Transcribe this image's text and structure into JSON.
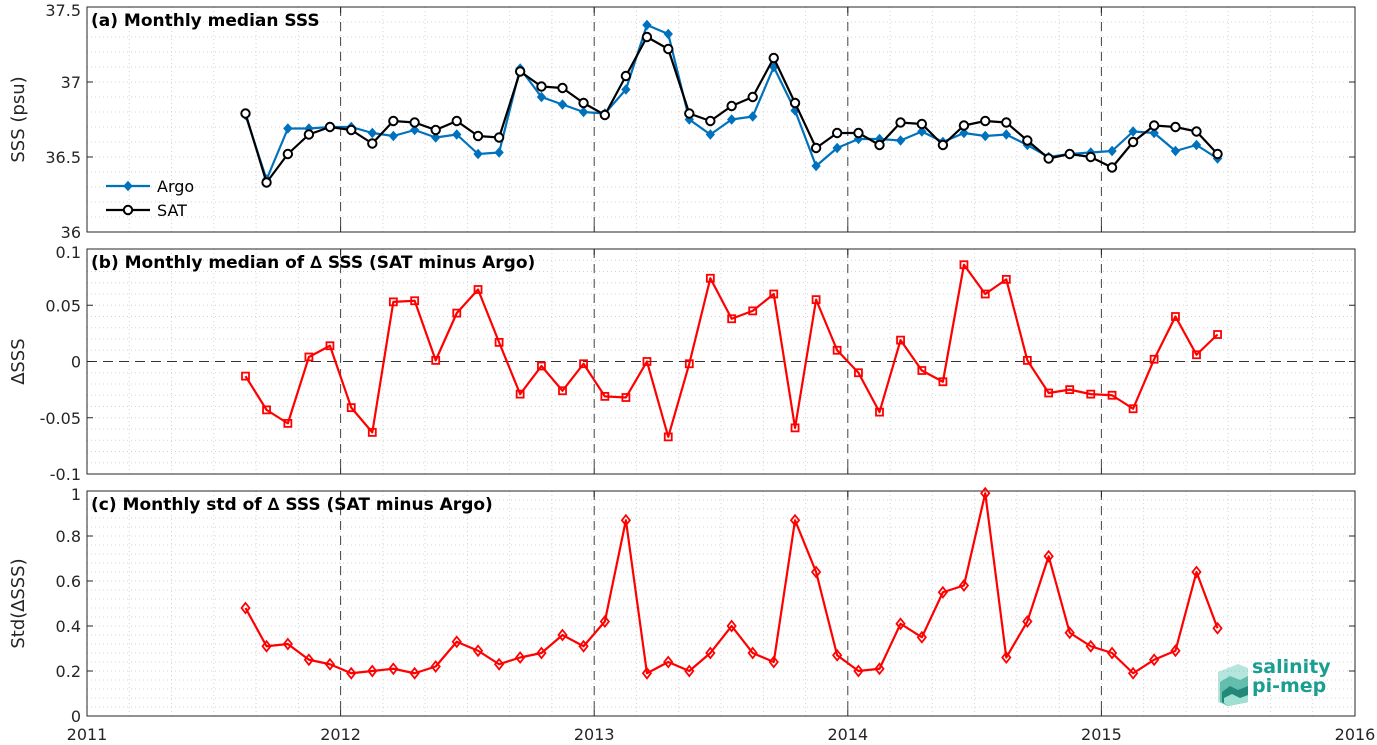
{
  "chart_data": [
    {
      "type": "line",
      "title": "(a) Monthly median SSS",
      "ylabel": "SSS (psu)",
      "xlim": [
        2011,
        2016
      ],
      "ylim": [
        36,
        37.5
      ],
      "xticks": [
        "2011",
        "2012",
        "2013",
        "2014",
        "2015",
        "2016"
      ],
      "yticks": [
        "36",
        "36.5",
        "37",
        "37.5"
      ],
      "legend_position": "lower-left",
      "series": [
        {
          "name": "Argo",
          "color": "#0072BD",
          "marker": "diamond",
          "x": [
            2011.625,
            2011.708,
            2011.792,
            2011.875,
            2011.958,
            2012.042,
            2012.125,
            2012.208,
            2012.292,
            2012.375,
            2012.458,
            2012.542,
            2012.625,
            2012.708,
            2012.792,
            2012.875,
            2012.958,
            2013.042,
            2013.125,
            2013.208,
            2013.292,
            2013.375,
            2013.458,
            2013.542,
            2013.625,
            2013.708,
            2013.792,
            2013.875,
            2013.958,
            2014.042,
            2014.125,
            2014.208,
            2014.292,
            2014.375,
            2014.458,
            2014.542,
            2014.625,
            2014.708,
            2014.792,
            2014.875,
            2014.958,
            2015.042,
            2015.125,
            2015.208,
            2015.292,
            2015.375,
            2015.458
          ],
          "y": [
            36.78,
            36.35,
            36.69,
            36.69,
            36.7,
            36.7,
            36.66,
            36.64,
            36.68,
            36.63,
            36.65,
            36.52,
            36.53,
            37.09,
            36.9,
            36.85,
            36.8,
            36.79,
            36.95,
            37.38,
            37.32,
            36.75,
            36.65,
            36.75,
            36.77,
            37.1,
            36.81,
            36.44,
            36.56,
            36.62,
            36.62,
            36.61,
            36.67,
            36.6,
            36.66,
            36.64,
            36.65,
            36.58,
            36.5,
            36.52,
            36.53,
            36.54,
            36.67,
            36.66,
            36.54,
            36.58,
            36.49
          ]
        },
        {
          "name": "SAT",
          "color": "#000000",
          "marker": "circle",
          "x": [
            2011.625,
            2011.708,
            2011.792,
            2011.875,
            2011.958,
            2012.042,
            2012.125,
            2012.208,
            2012.292,
            2012.375,
            2012.458,
            2012.542,
            2012.625,
            2012.708,
            2012.792,
            2012.875,
            2012.958,
            2013.042,
            2013.125,
            2013.208,
            2013.292,
            2013.375,
            2013.458,
            2013.542,
            2013.625,
            2013.708,
            2013.792,
            2013.875,
            2013.958,
            2014.042,
            2014.125,
            2014.208,
            2014.292,
            2014.375,
            2014.458,
            2014.542,
            2014.625,
            2014.708,
            2014.792,
            2014.875,
            2014.958,
            2015.042,
            2015.125,
            2015.208,
            2015.292,
            2015.375,
            2015.458
          ],
          "y": [
            36.79,
            36.33,
            36.52,
            36.65,
            36.7,
            36.68,
            36.59,
            36.74,
            36.73,
            36.68,
            36.74,
            36.64,
            36.63,
            37.07,
            36.97,
            36.96,
            36.86,
            36.78,
            37.04,
            37.3,
            37.22,
            36.79,
            36.74,
            36.84,
            36.9,
            37.16,
            36.86,
            36.56,
            36.66,
            36.66,
            36.58,
            36.73,
            36.72,
            36.58,
            36.71,
            36.74,
            36.73,
            36.61,
            36.49,
            36.52,
            36.5,
            36.43,
            36.6,
            36.71,
            36.7,
            36.67,
            36.52
          ]
        }
      ]
    },
    {
      "type": "line",
      "title": "(b) Monthly median of ∆ SSS (SAT minus Argo)",
      "ylabel": "∆SSS",
      "xlim": [
        2011,
        2016
      ],
      "ylim": [
        -0.1,
        0.1
      ],
      "yticks": [
        "-0.1",
        "-0.05",
        "0",
        "0.05",
        "0.1"
      ],
      "zero_line": true,
      "series": [
        {
          "color": "#FF0000",
          "marker": "square",
          "x": [
            2011.625,
            2011.708,
            2011.792,
            2011.875,
            2011.958,
            2012.042,
            2012.125,
            2012.208,
            2012.292,
            2012.375,
            2012.458,
            2012.542,
            2012.625,
            2012.708,
            2012.792,
            2012.875,
            2012.958,
            2013.042,
            2013.125,
            2013.208,
            2013.292,
            2013.375,
            2013.458,
            2013.542,
            2013.625,
            2013.708,
            2013.792,
            2013.875,
            2013.958,
            2014.042,
            2014.125,
            2014.208,
            2014.292,
            2014.375,
            2014.458,
            2014.542,
            2014.625,
            2014.708,
            2014.792,
            2014.875,
            2014.958,
            2015.042,
            2015.125,
            2015.208,
            2015.292,
            2015.375,
            2015.458
          ],
          "y": [
            -0.013,
            -0.043,
            -0.055,
            0.004,
            0.014,
            -0.041,
            -0.063,
            0.053,
            0.054,
            0.001,
            0.043,
            0.064,
            0.017,
            -0.029,
            -0.004,
            -0.026,
            -0.002,
            -0.031,
            -0.032,
            0.0,
            -0.067,
            -0.002,
            0.074,
            0.038,
            0.045,
            0.06,
            -0.059,
            0.055,
            0.01,
            -0.01,
            -0.045,
            0.019,
            -0.008,
            -0.018,
            0.086,
            0.06,
            0.073,
            0.001,
            -0.028,
            -0.025,
            -0.029,
            -0.03,
            -0.042,
            0.002,
            0.04,
            0.006,
            0.024
          ]
        }
      ]
    },
    {
      "type": "line",
      "title": "(c) Monthly std of ∆ SSS (SAT minus Argo)",
      "ylabel": "Std(∆SSS)",
      "xlim": [
        2011,
        2016
      ],
      "ylim": [
        0,
        1
      ],
      "xticks": [
        "2011",
        "2012",
        "2013",
        "2014",
        "2015",
        "2016"
      ],
      "yticks": [
        "0",
        "0.2",
        "0.4",
        "0.6",
        "0.8",
        "1"
      ],
      "series": [
        {
          "color": "#FF0000",
          "marker": "diamond",
          "x": [
            2011.625,
            2011.708,
            2011.792,
            2011.875,
            2011.958,
            2012.042,
            2012.125,
            2012.208,
            2012.292,
            2012.375,
            2012.458,
            2012.542,
            2012.625,
            2012.708,
            2012.792,
            2012.875,
            2012.958,
            2013.042,
            2013.125,
            2013.208,
            2013.292,
            2013.375,
            2013.458,
            2013.542,
            2013.625,
            2013.708,
            2013.792,
            2013.875,
            2013.958,
            2014.042,
            2014.125,
            2014.208,
            2014.292,
            2014.375,
            2014.458,
            2014.542,
            2014.625,
            2014.708,
            2014.792,
            2014.875,
            2014.958,
            2015.042,
            2015.125,
            2015.208,
            2015.292,
            2015.375,
            2015.458
          ],
          "y": [
            0.48,
            0.31,
            0.32,
            0.25,
            0.23,
            0.19,
            0.2,
            0.21,
            0.19,
            0.22,
            0.33,
            0.29,
            0.23,
            0.26,
            0.28,
            0.36,
            0.31,
            0.42,
            0.87,
            0.19,
            0.24,
            0.2,
            0.28,
            0.4,
            0.28,
            0.24,
            0.87,
            0.64,
            0.27,
            0.2,
            0.21,
            0.41,
            0.35,
            0.55,
            0.58,
            0.99,
            0.26,
            0.42,
            0.71,
            0.37,
            0.31,
            0.28,
            0.19,
            0.25,
            0.29,
            0.64,
            0.39
          ]
        }
      ]
    }
  ],
  "logo": {
    "line1": "salinity",
    "line2": "pi-mep"
  }
}
